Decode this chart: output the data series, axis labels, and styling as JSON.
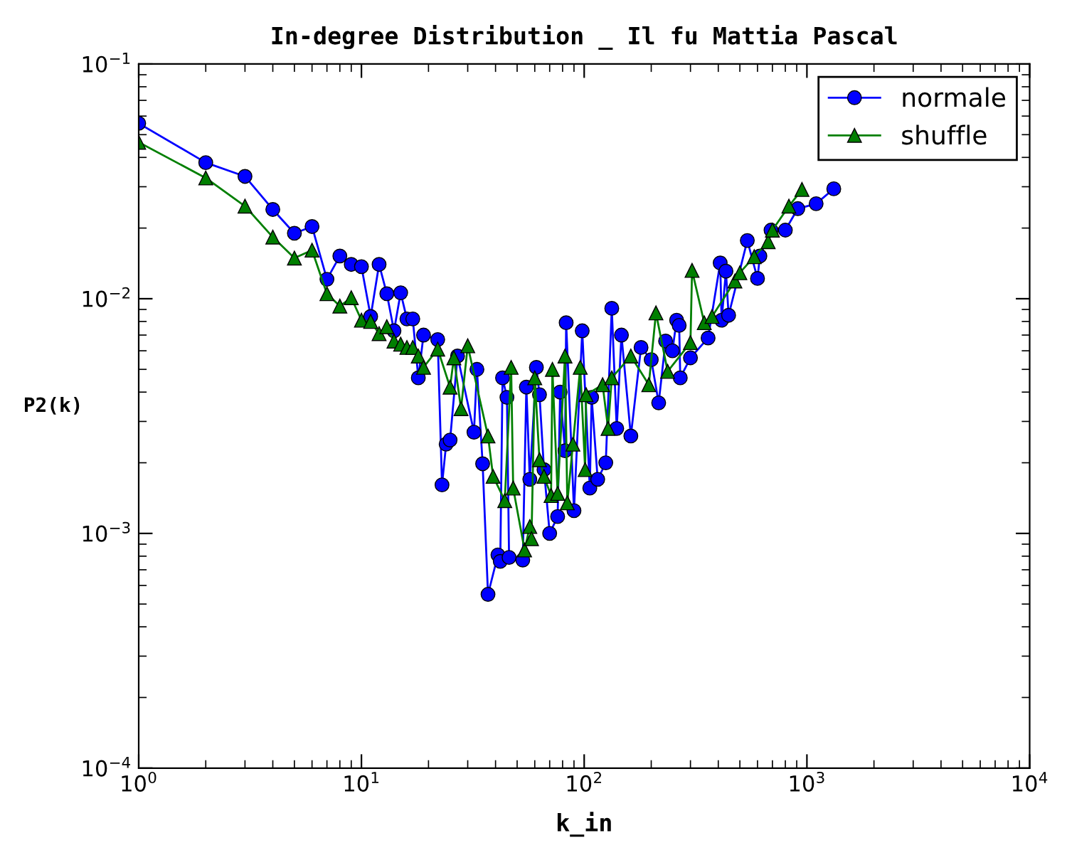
{
  "chart_data": {
    "type": "line",
    "title": "In-degree Distribution _ Il fu Mattia Pascal",
    "xlabel": "k_in",
    "ylabel": "P2(k)",
    "log": "xy",
    "grid": false,
    "legend": "top right",
    "xlim": [
      1,
      10000
    ],
    "ylim": [
      0.0001,
      0.1
    ],
    "xticks": [
      {
        "value": 1,
        "label": "10$^{0}$"
      },
      {
        "value": 10,
        "label": "10$^{1}$"
      },
      {
        "value": 100,
        "label": "10$^{2}$"
      },
      {
        "value": 1000,
        "label": "10$^{3}$"
      },
      {
        "value": 10000,
        "label": "10$^{4}$"
      }
    ],
    "yticks": [
      {
        "value": 0.0001,
        "label": "10$^{−4}$"
      },
      {
        "value": 0.001,
        "label": "10$^{−3}$"
      },
      {
        "value": 0.01,
        "label": "10$^{−2}$"
      },
      {
        "value": 0.1,
        "label": "10$^{−1}$"
      }
    ],
    "series": [
      {
        "name": "normale",
        "color": "#0000ff",
        "marker": "circle",
        "x": [
          1,
          2,
          3,
          4,
          5,
          6,
          7,
          8,
          9,
          10,
          11,
          12,
          13,
          14,
          15,
          16,
          17,
          18,
          19,
          22,
          23,
          24,
          25,
          27,
          32,
          33,
          35,
          37,
          41,
          42,
          43,
          45,
          46,
          53,
          55,
          57,
          61,
          63,
          66,
          70,
          76,
          78,
          82,
          83,
          90,
          98,
          106,
          108,
          115,
          125,
          133,
          140,
          147,
          162,
          180,
          200,
          216,
          232,
          249,
          260,
          267,
          270,
          300,
          360,
          408,
          414,
          433,
          445,
          540,
          600,
          615,
          690,
          800,
          910,
          1100,
          1320
        ],
        "values": [
          0.0559,
          0.038,
          0.0332,
          0.024,
          0.019,
          0.0203,
          0.0121,
          0.0152,
          0.014,
          0.0137,
          0.0084,
          0.014,
          0.0105,
          0.0073,
          0.0106,
          0.0082,
          0.0082,
          0.0046,
          0.007,
          0.0067,
          0.00161,
          0.0024,
          0.0025,
          0.0057,
          0.0027,
          0.005,
          0.00198,
          0.00055,
          0.00081,
          0.00076,
          0.0046,
          0.0038,
          0.00079,
          0.00077,
          0.0042,
          0.0017,
          0.0051,
          0.0039,
          0.00187,
          0.001,
          0.00118,
          0.004,
          0.00225,
          0.0079,
          0.00125,
          0.0073,
          0.00156,
          0.0038,
          0.0017,
          0.002,
          0.0091,
          0.0028,
          0.007,
          0.0026,
          0.0062,
          0.0055,
          0.0036,
          0.0066,
          0.006,
          0.0081,
          0.0077,
          0.0046,
          0.0056,
          0.0068,
          0.0142,
          0.0081,
          0.0131,
          0.0085,
          0.0177,
          0.0122,
          0.0152,
          0.0196,
          0.0196,
          0.0242,
          0.0254,
          0.0294
        ]
      },
      {
        "name": "shuffle",
        "color": "#007f00",
        "marker": "triangle",
        "x": [
          1,
          2,
          3,
          4,
          5,
          6,
          7,
          8,
          9,
          10,
          11,
          12,
          13,
          14,
          15,
          16,
          17,
          18,
          19,
          22,
          25,
          26,
          28,
          30,
          37,
          39,
          44,
          47,
          48,
          54,
          57,
          58,
          60,
          63,
          66,
          71,
          72,
          76,
          82,
          84,
          89,
          96,
          101,
          102,
          121,
          128,
          133,
          162,
          195,
          210,
          237,
          300,
          305,
          346,
          375,
          475,
          500,
          580,
          670,
          700,
          830,
          950
        ],
        "values": [
          0.0464,
          0.0327,
          0.0248,
          0.0183,
          0.0149,
          0.0161,
          0.0105,
          0.0093,
          0.0101,
          0.0081,
          0.008,
          0.0071,
          0.0076,
          0.0066,
          0.0064,
          0.0062,
          0.0062,
          0.0057,
          0.0051,
          0.0061,
          0.0042,
          0.0056,
          0.0034,
          0.0063,
          0.0026,
          0.00175,
          0.00138,
          0.0051,
          0.00156,
          0.00085,
          0.00107,
          0.00095,
          0.0046,
          0.00206,
          0.00175,
          0.00145,
          0.005,
          0.00148,
          0.0057,
          0.00135,
          0.0024,
          0.0051,
          0.00187,
          0.0039,
          0.0043,
          0.0028,
          0.0046,
          0.0057,
          0.0043,
          0.0087,
          0.0049,
          0.0065,
          0.0132,
          0.0079,
          0.0084,
          0.0119,
          0.0129,
          0.0151,
          0.0175,
          0.0196,
          0.0248,
          0.0292
        ]
      }
    ]
  }
}
